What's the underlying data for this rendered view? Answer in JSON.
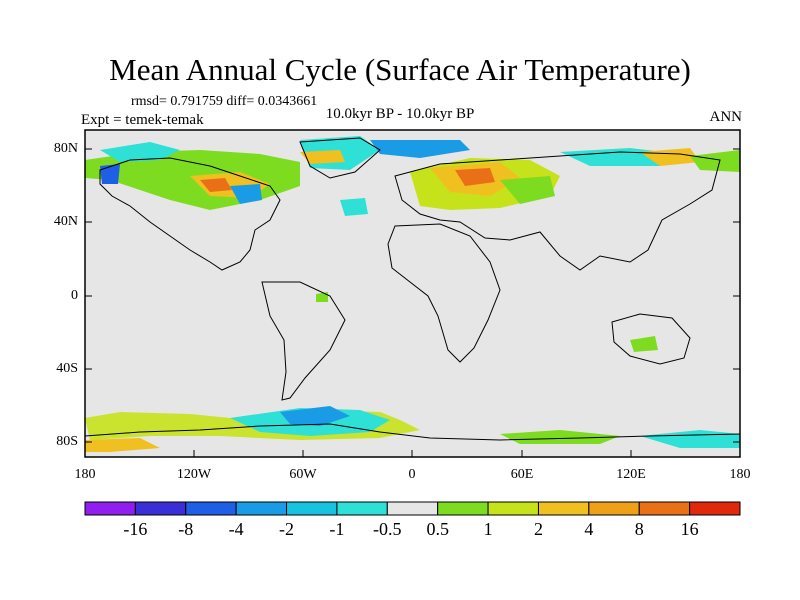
{
  "title": "Mean Annual Cycle (Surface Air Temperature)",
  "stats": "rmsd= 0.791759 diff= 0.0343661",
  "experiment": "Expt = temek-temak",
  "period": "10.0kyr BP - 10.0kyr BP",
  "season": "ANN",
  "lat_ticks": [
    "80N",
    "40N",
    "0",
    "40S",
    "80S"
  ],
  "lon_ticks": [
    "180",
    "120W",
    "60W",
    "0",
    "60E",
    "120E",
    "180"
  ],
  "colorbar": {
    "labels": [
      "-16",
      "-8",
      "-4",
      "-2",
      "-1",
      "-0.5",
      "0.5",
      "1",
      "2",
      "4",
      "8",
      "16"
    ],
    "colors": [
      "#8f1eef",
      "#3a2fd6",
      "#1e5fe6",
      "#1a9be6",
      "#18c3e0",
      "#2ee0d6",
      "#e6e6e6",
      "#7ddc1f",
      "#c6e21a",
      "#f0c020",
      "#eea018",
      "#ea7018",
      "#e0280c"
    ]
  },
  "map_background": "#e6e6e6"
}
